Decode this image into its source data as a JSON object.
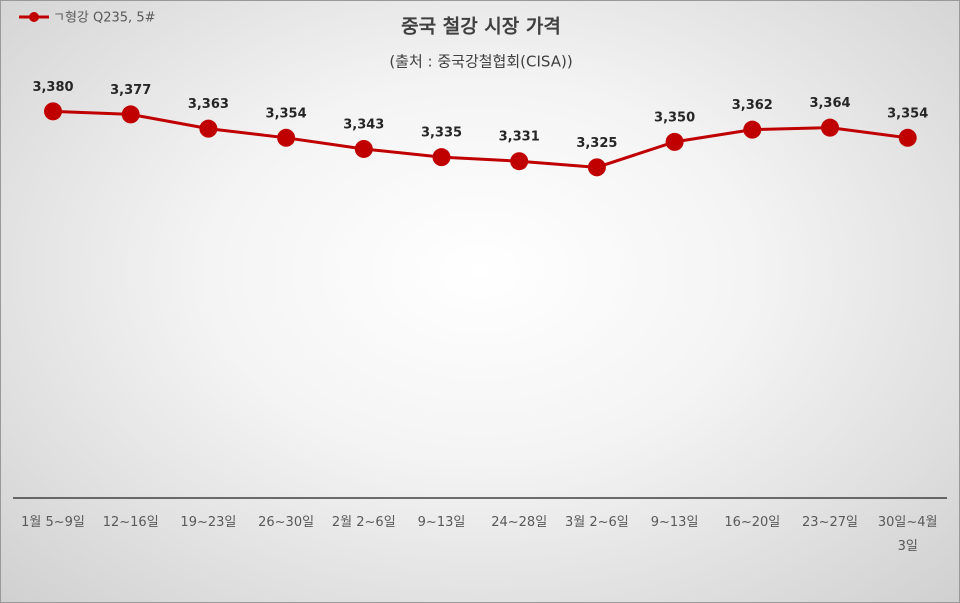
{
  "chart_data": {
    "type": "line",
    "title": "중국 철강 시장 가격",
    "subtitle": "(출처 : 중국강철협회(CISA))",
    "categories": [
      "1월 5~9일",
      "12~16일",
      "19~23일",
      "26~30일",
      "2월 2~6일",
      "9~13일",
      "24~28일",
      "3월 2~6일",
      "9~13일",
      "16~20일",
      "23~27일",
      "30일~4월 3일"
    ],
    "series": [
      {
        "name": "ㄱ형강 Q235, 5#",
        "color": "#c00000",
        "values": [
          3380,
          3377,
          3363,
          3354,
          3343,
          3335,
          3331,
          3325,
          3350,
          3362,
          3364,
          3354
        ],
        "value_labels": [
          "3,380",
          "3,377",
          "3,363",
          "3,354",
          "3,343",
          "3,335",
          "3,331",
          "3,325",
          "3,350",
          "3,362",
          "3,364",
          "3,354"
        ]
      }
    ],
    "ylim": [
      3000,
      3400
    ],
    "legend": "top-left"
  }
}
